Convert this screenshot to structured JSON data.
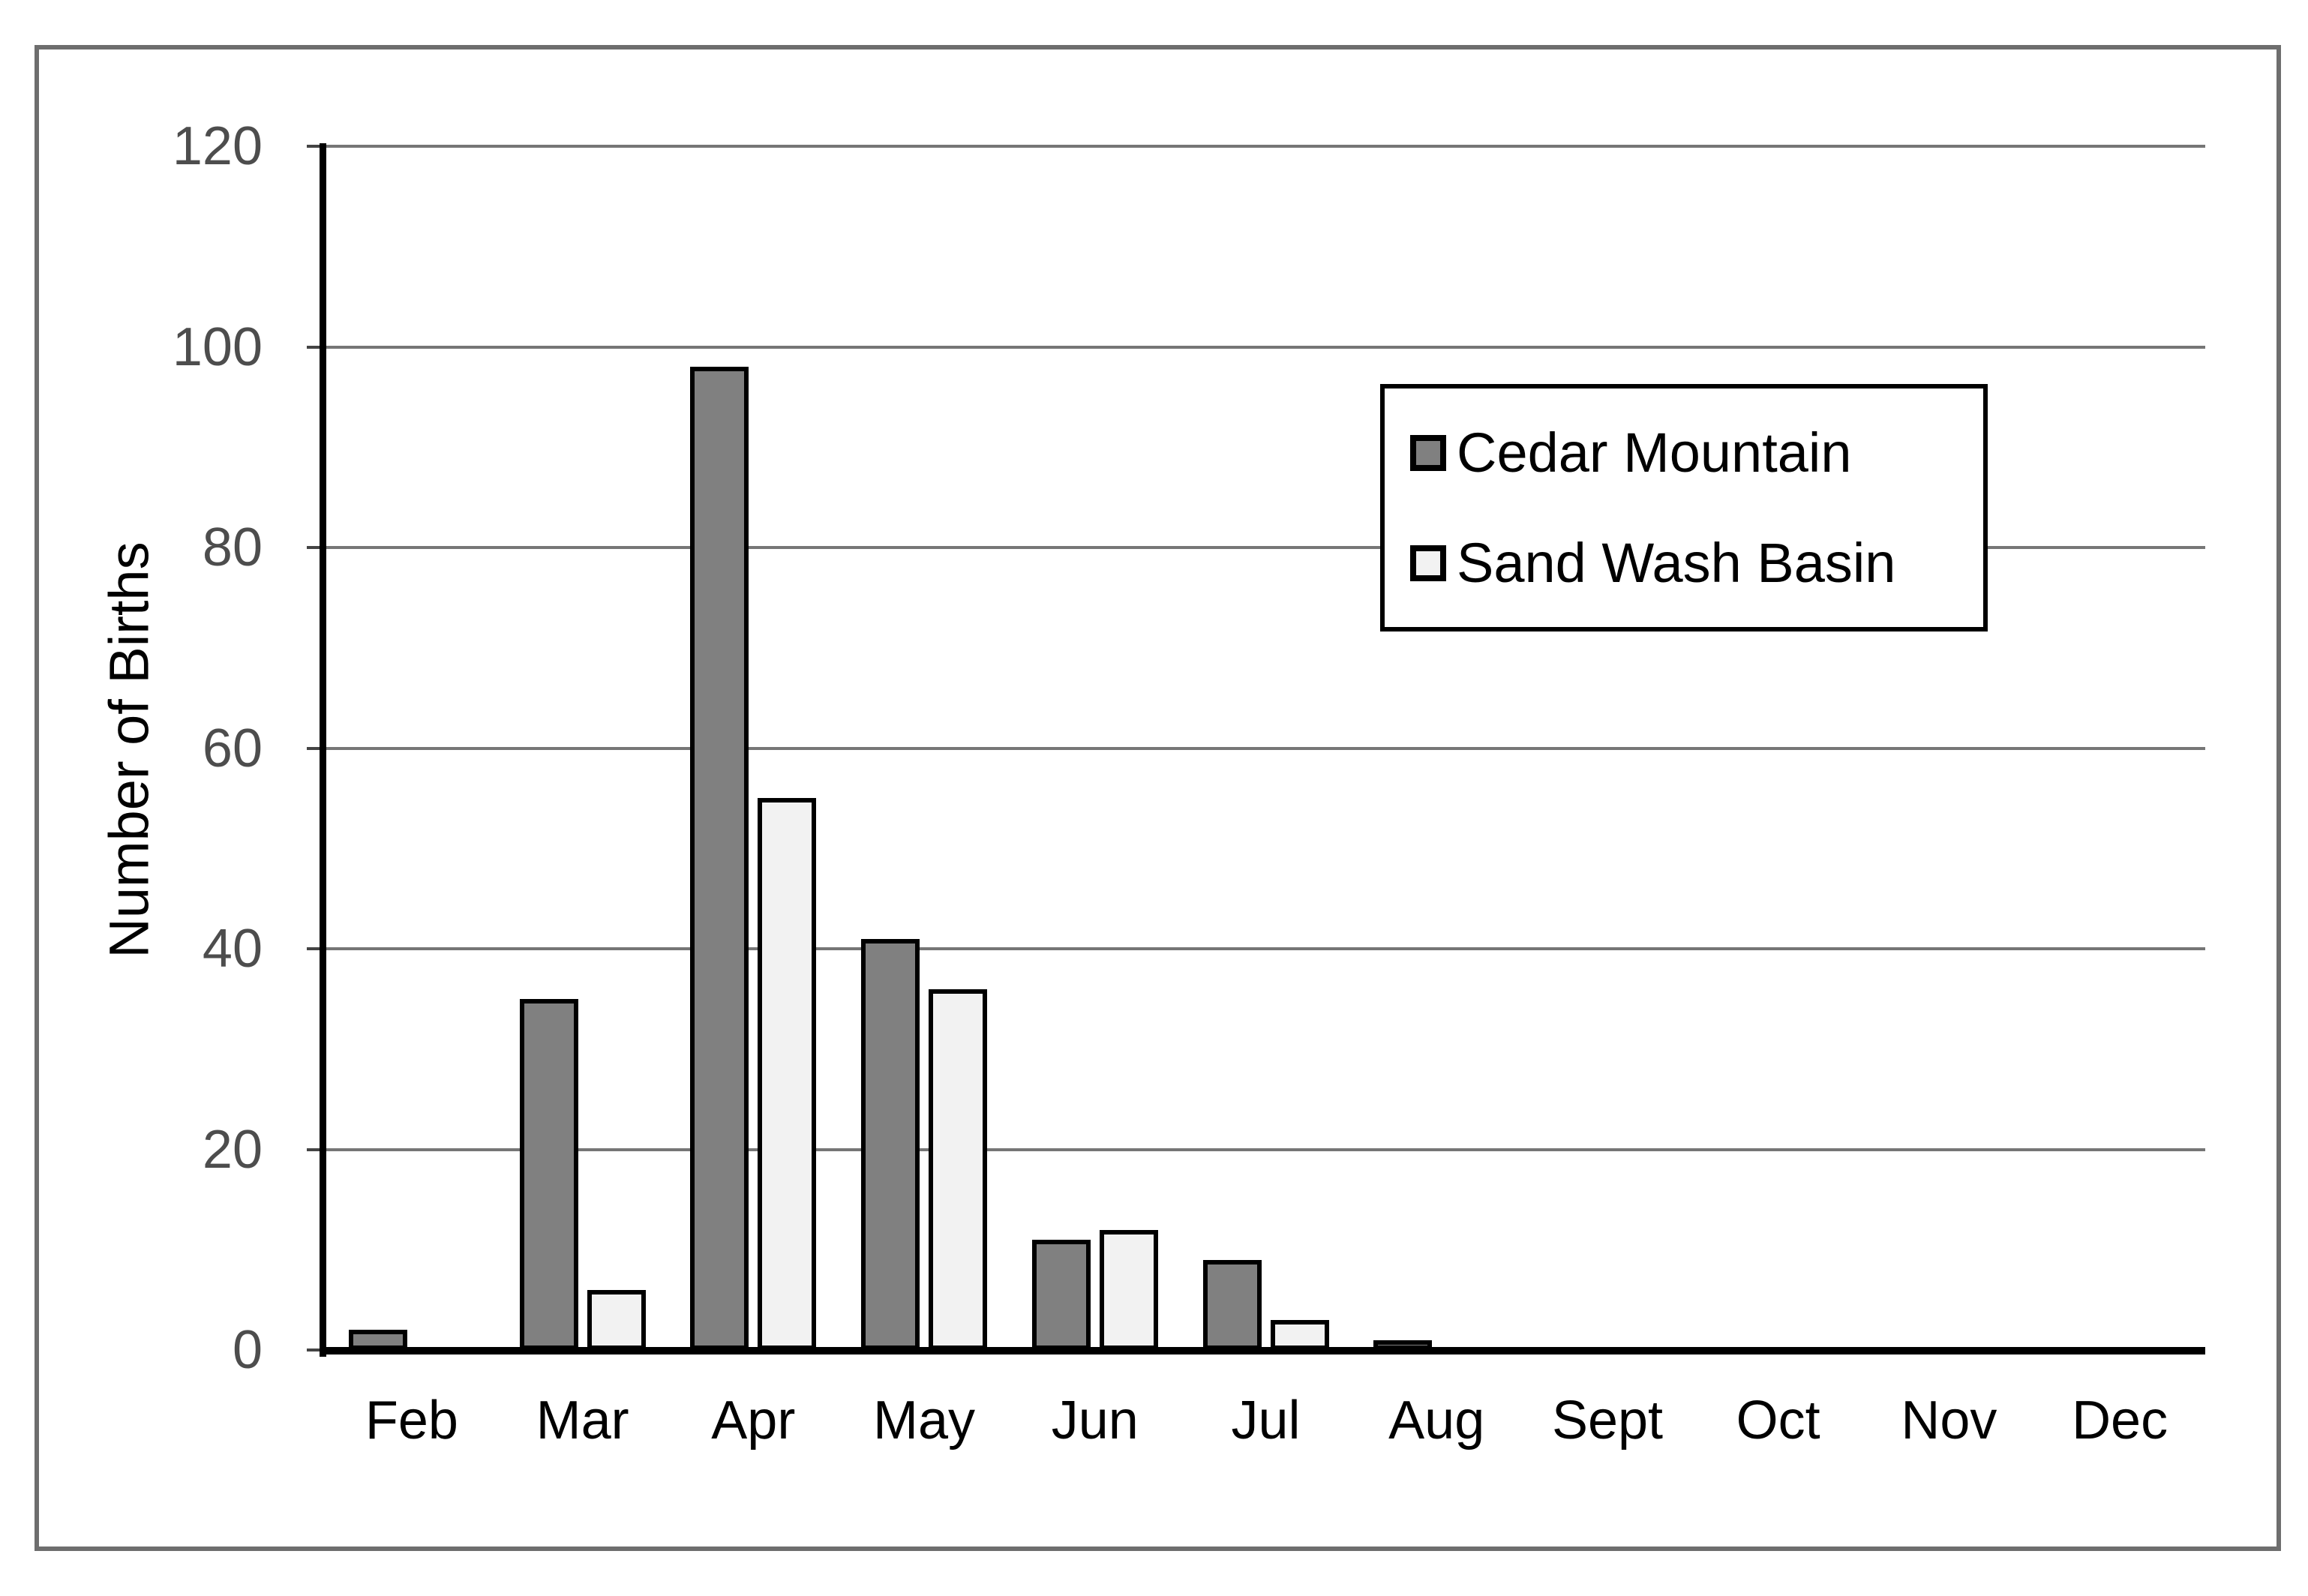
{
  "chart_data": {
    "type": "bar",
    "title": "",
    "xlabel": "",
    "ylabel": "Number of Births",
    "categories": [
      "Feb",
      "Mar",
      "Apr",
      "May",
      "Jun",
      "Jul",
      "Aug",
      "Sept",
      "Oct",
      "Nov",
      "Dec"
    ],
    "series": [
      {
        "name": "Cedar Mountain",
        "fill": "#808080",
        "border": "#000000",
        "values": [
          2,
          35,
          98,
          41,
          11,
          9,
          1,
          0,
          0,
          0,
          0
        ]
      },
      {
        "name": "Sand Wash Basin",
        "fill": "#f2f2f2",
        "border": "#000000",
        "values": [
          0,
          6,
          55,
          36,
          12,
          3,
          0,
          0,
          0,
          0,
          0
        ]
      }
    ],
    "ylim": [
      0,
      120
    ],
    "yticks": [
      0,
      20,
      40,
      60,
      80,
      100,
      120
    ],
    "grid": true,
    "legend_position": "upper-right"
  },
  "colors": {
    "gridline": "#767676",
    "axis": "#000000",
    "tick_label": "#4d4d4d",
    "category_label": "#000000",
    "figure_border": "#6e6e6e",
    "background": "#ffffff"
  }
}
